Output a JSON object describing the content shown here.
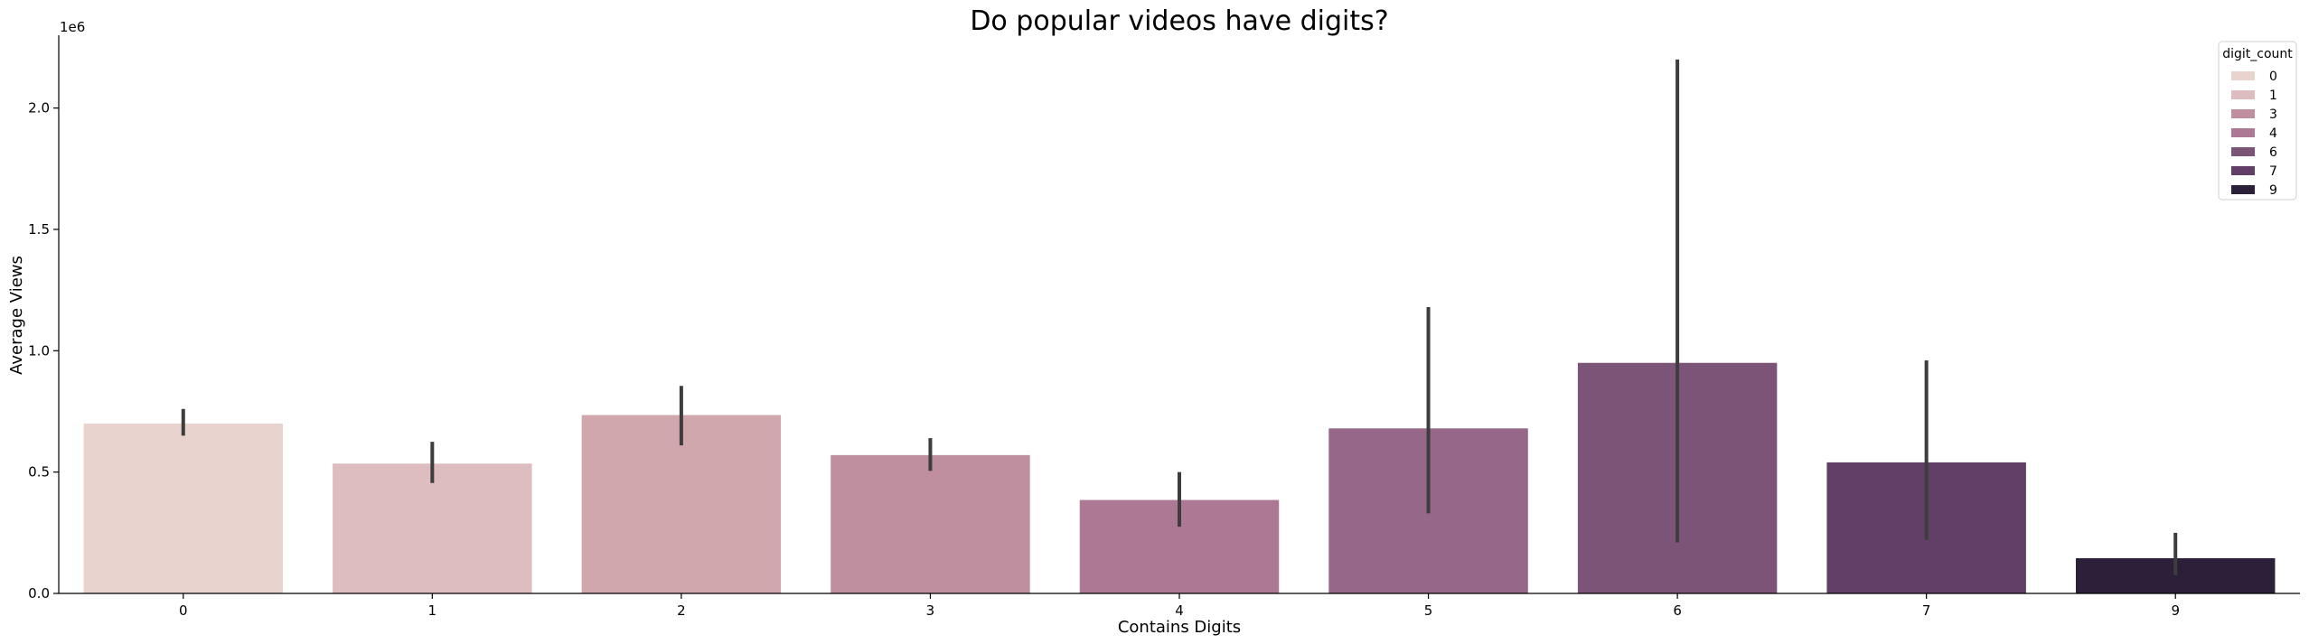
{
  "chart_data": {
    "type": "bar",
    "title": "Do popular videos have digits?",
    "xlabel": "Contains Digits",
    "ylabel": "Average Views",
    "y_offset_label": "1e6",
    "categories": [
      "0",
      "1",
      "2",
      "3",
      "4",
      "5",
      "6",
      "7",
      "9"
    ],
    "values": [
      700000,
      535000,
      735000,
      570000,
      385000,
      680000,
      950000,
      540000,
      145000
    ],
    "error_low": [
      650000,
      455000,
      610000,
      505000,
      275000,
      330000,
      210000,
      220000,
      75000
    ],
    "error_high": [
      760000,
      625000,
      855000,
      640000,
      500000,
      1180000,
      2200000,
      960000,
      250000
    ],
    "colors": [
      "#e8d3ce",
      "#ddbdbf",
      "#d1a7ae",
      "#bf8f9f",
      "#ac7893",
      "#966788",
      "#7c5477",
      "#623f67",
      "#2c1f3a"
    ],
    "ylim": [
      0,
      2300000
    ],
    "yticks": [
      0,
      500000,
      1000000,
      1500000,
      2000000
    ],
    "ytick_labels": [
      "0.0",
      "0.5",
      "1.0",
      "1.5",
      "2.0"
    ],
    "grid": false,
    "legend": {
      "title": "digit_count",
      "placement": "top-right",
      "entries": [
        "0",
        "1",
        "3",
        "4",
        "6",
        "7",
        "9"
      ],
      "colors": [
        "#e8d3ce",
        "#ddbdbf",
        "#bf8f9f",
        "#ac7893",
        "#7c5477",
        "#623f67",
        "#2c1f3a"
      ]
    }
  }
}
